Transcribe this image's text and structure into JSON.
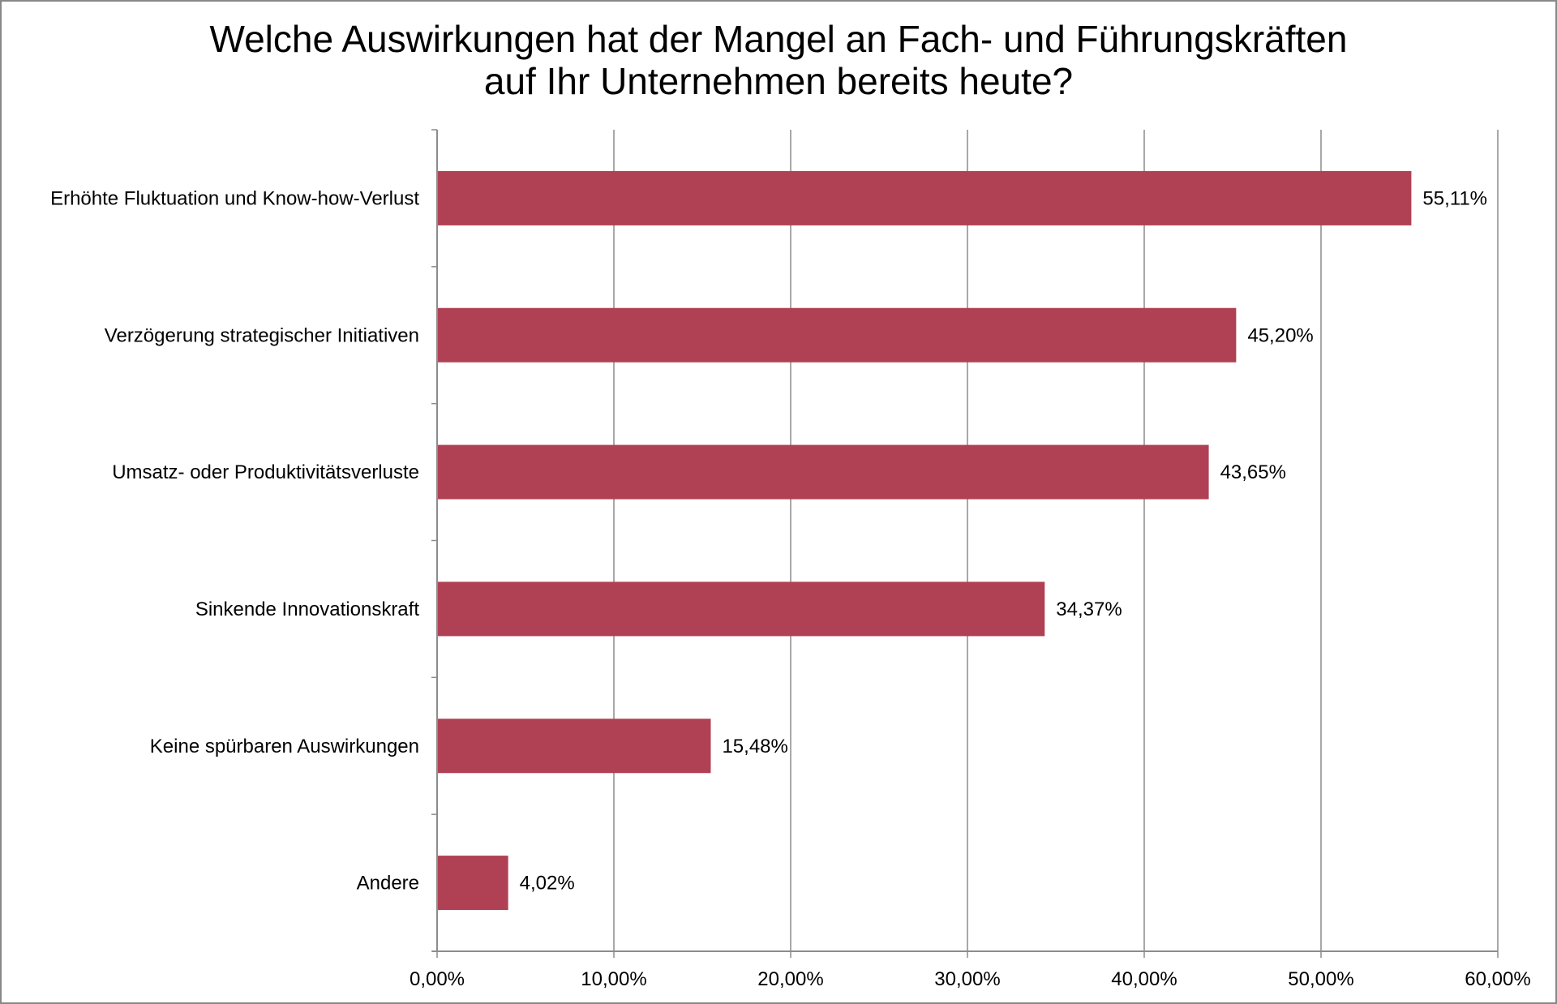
{
  "chart_data": {
    "type": "bar",
    "orientation": "horizontal",
    "title": [
      "Welche Auswirkungen hat der Mangel an Fach- und Führungskräften",
      "auf Ihr Unternehmen bereits heute?"
    ],
    "categories": [
      "Erhöhte Fluktuation und Know-how-Verlust",
      "Verzögerung strategischer Initiativen",
      "Umsatz- oder Produktivitätsverluste",
      "Sinkende Innovationskraft",
      "Keine spürbaren Auswirkungen",
      "Andere"
    ],
    "values": [
      55.11,
      45.2,
      43.65,
      34.37,
      15.48,
      4.02
    ],
    "data_labels": [
      "55,11%",
      "45,20%",
      "43,65%",
      "34,37%",
      "15,48%",
      "4,02%"
    ],
    "xlim": [
      0,
      60
    ],
    "xticks": [
      0,
      10,
      20,
      30,
      40,
      50,
      60
    ],
    "xtick_labels": [
      "0,00%",
      "10,00%",
      "20,00%",
      "30,00%",
      "40,00%",
      "50,00%",
      "60,00%"
    ],
    "grid": "vertical",
    "legend": "none",
    "bar_color": "#b04054"
  }
}
